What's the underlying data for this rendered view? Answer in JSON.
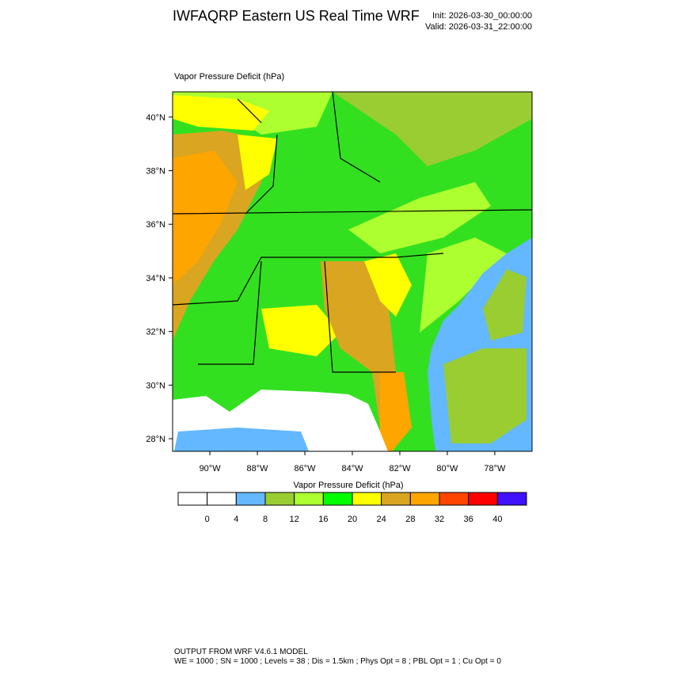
{
  "header": {
    "title": "IWFAQRP Eastern US Real Time WRF",
    "init": "Init: 2026-03-30_00:00:00",
    "valid": "Valid: 2026-03-31_22:00:00"
  },
  "map": {
    "label": "Vapor Pressure Deficit   (hPa)",
    "lonlim": [
      -91.57,
      -76.43
    ],
    "latlim": [
      27.53,
      40.94
    ],
    "lon_ticks": [
      {
        "value": -90,
        "label": "90°W"
      },
      {
        "value": -88,
        "label": "88°W"
      },
      {
        "value": -86,
        "label": "86°W"
      },
      {
        "value": -84,
        "label": "84°W"
      },
      {
        "value": -82,
        "label": "82°W"
      },
      {
        "value": -80,
        "label": "80°W"
      },
      {
        "value": -78,
        "label": "78°W"
      }
    ],
    "lat_ticks": [
      {
        "value": 40,
        "label": "40°N"
      },
      {
        "value": 38,
        "label": "38°N"
      },
      {
        "value": 36,
        "label": "36°N"
      },
      {
        "value": 34,
        "label": "34°N"
      },
      {
        "value": 32,
        "label": "32°N"
      },
      {
        "value": 30,
        "label": "30°N"
      },
      {
        "value": 28,
        "label": "28°N"
      }
    ]
  },
  "colorbar": {
    "title": "Vapor Pressure Deficit  (hPa)",
    "colors": [
      "#ffffff",
      "#ffffff",
      "#63b8ff",
      "#9acd32",
      "#adff2f",
      "#00ff00",
      "#ffff00",
      "#daa520",
      "#ffa500",
      "#ff4500",
      "#ff0000",
      "#4010ff"
    ],
    "levels": [
      0,
      4,
      8,
      12,
      16,
      20,
      24,
      28,
      32,
      36,
      40
    ]
  },
  "footer": {
    "line1": "OUTPUT FROM WRF V4.6.1 MODEL",
    "line2": "WE = 1000 ; SN = 1000 ; Levels = 38 ; Dis = 1.5km ; Phys Opt = 8 ; PBL Opt = 1 ; Cu Opt = 0"
  }
}
